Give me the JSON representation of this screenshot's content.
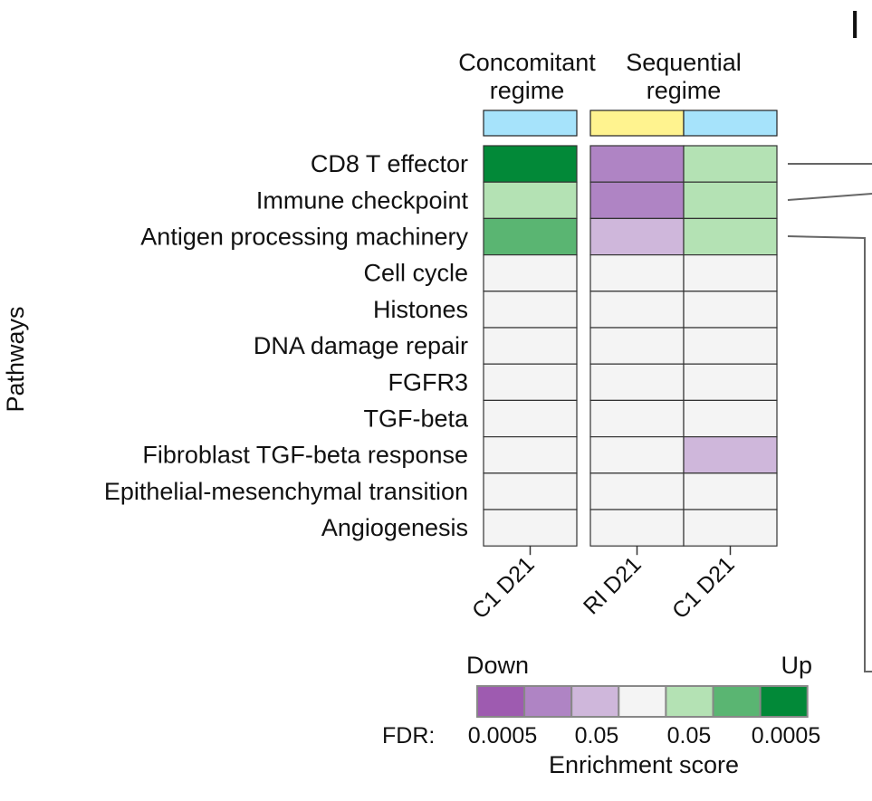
{
  "chart_data": {
    "type": "heatmap",
    "ylabel": "Pathways",
    "panel_letter": "I",
    "groups": [
      {
        "label_line1": "Concomitant",
        "label_line2": "regime",
        "columns": [
          "C1 D21"
        ],
        "bar_colors": [
          "#a6e3fb"
        ]
      },
      {
        "label_line1": "Sequential",
        "label_line2": "regime",
        "columns": [
          "RI D21",
          "C1 D21"
        ],
        "bar_colors": [
          "#fff38f",
          "#a6e3fb"
        ]
      }
    ],
    "rows": [
      "CD8 T effector",
      "Immune checkpoint",
      "Antigen processing machinery",
      "Cell cycle",
      "Histones",
      "DNA damage repair",
      "FGFR3",
      "TGF-beta",
      "Fibroblast TGF-beta response",
      "Epithelial-mesenchymal transition",
      "Angiogenesis"
    ],
    "values": [
      [
        3,
        -2,
        1
      ],
      [
        1,
        -2,
        1
      ],
      [
        2,
        -1,
        1
      ],
      [
        0,
        0,
        0
      ],
      [
        0,
        0,
        0
      ],
      [
        0,
        0,
        0
      ],
      [
        0,
        0,
        0
      ],
      [
        0,
        0,
        0
      ],
      [
        0,
        0,
        -1
      ],
      [
        0,
        0,
        0
      ],
      [
        0,
        0,
        0
      ]
    ],
    "legend": {
      "title": "Enrichment score",
      "low_label": "Down",
      "high_label": "Up",
      "fdr_prefix": "FDR:",
      "fdr_ticks": [
        "0.0005",
        "0.05",
        "0.05",
        "0.0005"
      ],
      "levels": [
        -3,
        -2,
        -1,
        0,
        1,
        2,
        3
      ],
      "colors": [
        "#9e5bb0",
        "#af84c4",
        "#cfb7db",
        "#f4f4f4",
        "#b4e2b4",
        "#5ab572",
        "#028938"
      ]
    }
  }
}
